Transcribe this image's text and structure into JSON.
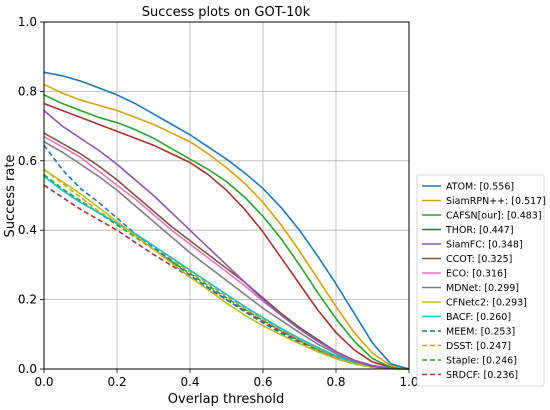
{
  "chart_data": {
    "type": "line",
    "title": "Success plots on GOT-10k",
    "xlabel": "Overlap threshold",
    "ylabel": "Success rate",
    "xlim": [
      0,
      1
    ],
    "ylim": [
      0,
      1
    ],
    "xticks": [
      "0.0",
      "0.2",
      "0.4",
      "0.6",
      "0.8",
      "1.0"
    ],
    "yticks": [
      "0.0",
      "0.2",
      "0.4",
      "0.6",
      "0.8",
      "1.0"
    ],
    "grid": true,
    "legend_position": "center-right",
    "series": [
      {
        "name": "ATOM: [0.556]",
        "color": "#1f77b4",
        "dash": "solid",
        "points": [
          [
            0,
            0.855
          ],
          [
            0.05,
            0.845
          ],
          [
            0.1,
            0.83
          ],
          [
            0.15,
            0.81
          ],
          [
            0.2,
            0.79
          ],
          [
            0.25,
            0.765
          ],
          [
            0.3,
            0.735
          ],
          [
            0.35,
            0.705
          ],
          [
            0.4,
            0.675
          ],
          [
            0.45,
            0.64
          ],
          [
            0.5,
            0.605
          ],
          [
            0.55,
            0.565
          ],
          [
            0.6,
            0.52
          ],
          [
            0.65,
            0.465
          ],
          [
            0.7,
            0.4
          ],
          [
            0.75,
            0.325
          ],
          [
            0.8,
            0.245
          ],
          [
            0.85,
            0.16
          ],
          [
            0.9,
            0.075
          ],
          [
            0.95,
            0.015
          ],
          [
            1.0,
            0.0
          ]
        ]
      },
      {
        "name": "SiamRPN++: [0.517]",
        "color": "#d4a017",
        "dash": "solid",
        "points": [
          [
            0,
            0.82
          ],
          [
            0.05,
            0.795
          ],
          [
            0.1,
            0.775
          ],
          [
            0.15,
            0.76
          ],
          [
            0.2,
            0.745
          ],
          [
            0.25,
            0.725
          ],
          [
            0.3,
            0.705
          ],
          [
            0.35,
            0.68
          ],
          [
            0.4,
            0.655
          ],
          [
            0.45,
            0.62
          ],
          [
            0.5,
            0.58
          ],
          [
            0.55,
            0.535
          ],
          [
            0.6,
            0.48
          ],
          [
            0.65,
            0.415
          ],
          [
            0.7,
            0.34
          ],
          [
            0.75,
            0.26
          ],
          [
            0.8,
            0.18
          ],
          [
            0.85,
            0.105
          ],
          [
            0.9,
            0.045
          ],
          [
            0.95,
            0.01
          ],
          [
            1.0,
            0.0
          ]
        ]
      },
      {
        "name": "CAFSN[our]: [0.483]",
        "color": "#2ca02c",
        "dash": "solid",
        "points": [
          [
            0,
            0.79
          ],
          [
            0.05,
            0.765
          ],
          [
            0.1,
            0.745
          ],
          [
            0.15,
            0.725
          ],
          [
            0.2,
            0.71
          ],
          [
            0.25,
            0.69
          ],
          [
            0.3,
            0.665
          ],
          [
            0.35,
            0.635
          ],
          [
            0.4,
            0.605
          ],
          [
            0.45,
            0.575
          ],
          [
            0.5,
            0.54
          ],
          [
            0.55,
            0.495
          ],
          [
            0.6,
            0.44
          ],
          [
            0.65,
            0.375
          ],
          [
            0.7,
            0.3
          ],
          [
            0.75,
            0.22
          ],
          [
            0.8,
            0.145
          ],
          [
            0.85,
            0.08
          ],
          [
            0.9,
            0.03
          ],
          [
            0.95,
            0.005
          ],
          [
            1.0,
            0.0
          ]
        ]
      },
      {
        "name": "THOR: [0.447]",
        "color": "#a83232",
        "dash": "solid",
        "points": [
          [
            0,
            0.765
          ],
          [
            0.05,
            0.745
          ],
          [
            0.1,
            0.725
          ],
          [
            0.15,
            0.705
          ],
          [
            0.2,
            0.685
          ],
          [
            0.25,
            0.665
          ],
          [
            0.3,
            0.645
          ],
          [
            0.35,
            0.62
          ],
          [
            0.4,
            0.595
          ],
          [
            0.45,
            0.56
          ],
          [
            0.5,
            0.515
          ],
          [
            0.55,
            0.46
          ],
          [
            0.6,
            0.395
          ],
          [
            0.65,
            0.32
          ],
          [
            0.7,
            0.245
          ],
          [
            0.75,
            0.17
          ],
          [
            0.8,
            0.105
          ],
          [
            0.85,
            0.055
          ],
          [
            0.9,
            0.02
          ],
          [
            0.95,
            0.005
          ],
          [
            1.0,
            0.0
          ]
        ]
      },
      {
        "name": "SiamFC: [0.348]",
        "color": "#8a56b8",
        "dash": "solid",
        "points": [
          [
            0,
            0.745
          ],
          [
            0.05,
            0.7
          ],
          [
            0.1,
            0.665
          ],
          [
            0.15,
            0.63
          ],
          [
            0.2,
            0.59
          ],
          [
            0.25,
            0.545
          ],
          [
            0.3,
            0.5
          ],
          [
            0.35,
            0.45
          ],
          [
            0.4,
            0.4
          ],
          [
            0.45,
            0.35
          ],
          [
            0.5,
            0.3
          ],
          [
            0.55,
            0.25
          ],
          [
            0.6,
            0.2
          ],
          [
            0.65,
            0.155
          ],
          [
            0.7,
            0.115
          ],
          [
            0.75,
            0.08
          ],
          [
            0.8,
            0.05
          ],
          [
            0.85,
            0.025
          ],
          [
            0.9,
            0.01
          ],
          [
            0.95,
            0.002
          ],
          [
            1.0,
            0.0
          ]
        ]
      },
      {
        "name": "CCOT: [0.325]",
        "color": "#7b5544",
        "dash": "solid",
        "points": [
          [
            0,
            0.68
          ],
          [
            0.05,
            0.65
          ],
          [
            0.1,
            0.62
          ],
          [
            0.15,
            0.585
          ],
          [
            0.2,
            0.545
          ],
          [
            0.25,
            0.5
          ],
          [
            0.3,
            0.455
          ],
          [
            0.35,
            0.41
          ],
          [
            0.4,
            0.37
          ],
          [
            0.45,
            0.33
          ],
          [
            0.5,
            0.29
          ],
          [
            0.55,
            0.25
          ],
          [
            0.6,
            0.205
          ],
          [
            0.65,
            0.16
          ],
          [
            0.7,
            0.12
          ],
          [
            0.75,
            0.085
          ],
          [
            0.8,
            0.05
          ],
          [
            0.85,
            0.025
          ],
          [
            0.9,
            0.008
          ],
          [
            0.95,
            0.002
          ],
          [
            1.0,
            0.0
          ]
        ]
      },
      {
        "name": "ECO: [0.316]",
        "color": "#e377c2",
        "dash": "solid",
        "points": [
          [
            0,
            0.67
          ],
          [
            0.05,
            0.64
          ],
          [
            0.1,
            0.61
          ],
          [
            0.15,
            0.57
          ],
          [
            0.2,
            0.53
          ],
          [
            0.25,
            0.49
          ],
          [
            0.3,
            0.445
          ],
          [
            0.35,
            0.4
          ],
          [
            0.4,
            0.36
          ],
          [
            0.45,
            0.32
          ],
          [
            0.5,
            0.28
          ],
          [
            0.55,
            0.24
          ],
          [
            0.6,
            0.195
          ],
          [
            0.65,
            0.155
          ],
          [
            0.7,
            0.115
          ],
          [
            0.75,
            0.08
          ],
          [
            0.8,
            0.048
          ],
          [
            0.85,
            0.024
          ],
          [
            0.9,
            0.008
          ],
          [
            0.95,
            0.002
          ],
          [
            1.0,
            0.0
          ]
        ]
      },
      {
        "name": "MDNet: [0.299]",
        "color": "#7f7f7f",
        "dash": "solid",
        "points": [
          [
            0,
            0.655
          ],
          [
            0.05,
            0.625
          ],
          [
            0.1,
            0.59
          ],
          [
            0.15,
            0.555
          ],
          [
            0.2,
            0.515
          ],
          [
            0.25,
            0.47
          ],
          [
            0.3,
            0.425
          ],
          [
            0.35,
            0.38
          ],
          [
            0.4,
            0.335
          ],
          [
            0.45,
            0.295
          ],
          [
            0.5,
            0.255
          ],
          [
            0.55,
            0.215
          ],
          [
            0.6,
            0.175
          ],
          [
            0.65,
            0.14
          ],
          [
            0.7,
            0.105
          ],
          [
            0.75,
            0.072
          ],
          [
            0.8,
            0.044
          ],
          [
            0.85,
            0.022
          ],
          [
            0.9,
            0.008
          ],
          [
            0.95,
            0.002
          ],
          [
            1.0,
            0.0
          ]
        ]
      },
      {
        "name": "CFNetc2: [0.293]",
        "color": "#bcbd22",
        "dash": "solid",
        "points": [
          [
            0,
            0.575
          ],
          [
            0.05,
            0.54
          ],
          [
            0.1,
            0.505
          ],
          [
            0.15,
            0.465
          ],
          [
            0.2,
            0.425
          ],
          [
            0.25,
            0.385
          ],
          [
            0.3,
            0.345
          ],
          [
            0.35,
            0.305
          ],
          [
            0.4,
            0.265
          ],
          [
            0.45,
            0.228
          ],
          [
            0.5,
            0.19
          ],
          [
            0.55,
            0.155
          ],
          [
            0.6,
            0.125
          ],
          [
            0.65,
            0.098
          ],
          [
            0.7,
            0.073
          ],
          [
            0.75,
            0.05
          ],
          [
            0.8,
            0.03
          ],
          [
            0.85,
            0.015
          ],
          [
            0.9,
            0.005
          ],
          [
            0.95,
            0.001
          ],
          [
            1.0,
            0.0
          ]
        ]
      },
      {
        "name": "BACF: [0.260]",
        "color": "#17becf",
        "dash": "solid",
        "points": [
          [
            0,
            0.555
          ],
          [
            0.05,
            0.515
          ],
          [
            0.1,
            0.48
          ],
          [
            0.15,
            0.45
          ],
          [
            0.2,
            0.42
          ],
          [
            0.25,
            0.39
          ],
          [
            0.3,
            0.355
          ],
          [
            0.35,
            0.32
          ],
          [
            0.4,
            0.285
          ],
          [
            0.45,
            0.25
          ],
          [
            0.5,
            0.215
          ],
          [
            0.55,
            0.18
          ],
          [
            0.6,
            0.148
          ],
          [
            0.65,
            0.117
          ],
          [
            0.7,
            0.088
          ],
          [
            0.75,
            0.062
          ],
          [
            0.8,
            0.038
          ],
          [
            0.85,
            0.02
          ],
          [
            0.9,
            0.007
          ],
          [
            0.95,
            0.001
          ],
          [
            1.0,
            0.0
          ]
        ]
      },
      {
        "name": "MEEM: [0.253]",
        "color": "#1f77b4",
        "dash": "dashed",
        "points": [
          [
            0,
            0.645
          ],
          [
            0.05,
            0.575
          ],
          [
            0.1,
            0.52
          ],
          [
            0.15,
            0.48
          ],
          [
            0.2,
            0.435
          ],
          [
            0.25,
            0.39
          ],
          [
            0.3,
            0.35
          ],
          [
            0.35,
            0.31
          ],
          [
            0.4,
            0.27
          ],
          [
            0.45,
            0.235
          ],
          [
            0.5,
            0.2
          ],
          [
            0.55,
            0.165
          ],
          [
            0.6,
            0.133
          ],
          [
            0.65,
            0.103
          ],
          [
            0.7,
            0.075
          ],
          [
            0.75,
            0.05
          ],
          [
            0.8,
            0.03
          ],
          [
            0.85,
            0.014
          ],
          [
            0.9,
            0.005
          ],
          [
            0.95,
            0.001
          ],
          [
            1.0,
            0.0
          ]
        ]
      },
      {
        "name": "DSST: [0.247]",
        "color": "#d4a017",
        "dash": "dashed",
        "points": [
          [
            0,
            0.575
          ],
          [
            0.05,
            0.535
          ],
          [
            0.1,
            0.495
          ],
          [
            0.15,
            0.455
          ],
          [
            0.2,
            0.42
          ],
          [
            0.25,
            0.385
          ],
          [
            0.3,
            0.35
          ],
          [
            0.35,
            0.315
          ],
          [
            0.4,
            0.28
          ],
          [
            0.45,
            0.245
          ],
          [
            0.5,
            0.21
          ],
          [
            0.55,
            0.175
          ],
          [
            0.6,
            0.143
          ],
          [
            0.65,
            0.113
          ],
          [
            0.7,
            0.085
          ],
          [
            0.75,
            0.058
          ],
          [
            0.8,
            0.035
          ],
          [
            0.85,
            0.017
          ],
          [
            0.9,
            0.006
          ],
          [
            0.95,
            0.001
          ],
          [
            1.0,
            0.0
          ]
        ]
      },
      {
        "name": "Staple: [0.246]",
        "color": "#2ca02c",
        "dash": "dashed",
        "points": [
          [
            0,
            0.56
          ],
          [
            0.05,
            0.52
          ],
          [
            0.1,
            0.485
          ],
          [
            0.15,
            0.45
          ],
          [
            0.2,
            0.415
          ],
          [
            0.25,
            0.38
          ],
          [
            0.3,
            0.345
          ],
          [
            0.35,
            0.31
          ],
          [
            0.4,
            0.275
          ],
          [
            0.45,
            0.24
          ],
          [
            0.5,
            0.205
          ],
          [
            0.55,
            0.172
          ],
          [
            0.6,
            0.14
          ],
          [
            0.65,
            0.11
          ],
          [
            0.7,
            0.082
          ],
          [
            0.75,
            0.056
          ],
          [
            0.8,
            0.034
          ],
          [
            0.85,
            0.016
          ],
          [
            0.9,
            0.006
          ],
          [
            0.95,
            0.001
          ],
          [
            1.0,
            0.0
          ]
        ]
      },
      {
        "name": "SRDCF: [0.236]",
        "color": "#a83232",
        "dash": "dashed",
        "points": [
          [
            0,
            0.53
          ],
          [
            0.05,
            0.495
          ],
          [
            0.1,
            0.46
          ],
          [
            0.15,
            0.43
          ],
          [
            0.2,
            0.4
          ],
          [
            0.25,
            0.365
          ],
          [
            0.3,
            0.33
          ],
          [
            0.35,
            0.298
          ],
          [
            0.4,
            0.265
          ],
          [
            0.45,
            0.232
          ],
          [
            0.5,
            0.2
          ],
          [
            0.55,
            0.168
          ],
          [
            0.6,
            0.137
          ],
          [
            0.65,
            0.108
          ],
          [
            0.7,
            0.08
          ],
          [
            0.75,
            0.055
          ],
          [
            0.8,
            0.033
          ],
          [
            0.85,
            0.016
          ],
          [
            0.9,
            0.006
          ],
          [
            0.95,
            0.001
          ],
          [
            1.0,
            0.0
          ]
        ]
      }
    ]
  }
}
